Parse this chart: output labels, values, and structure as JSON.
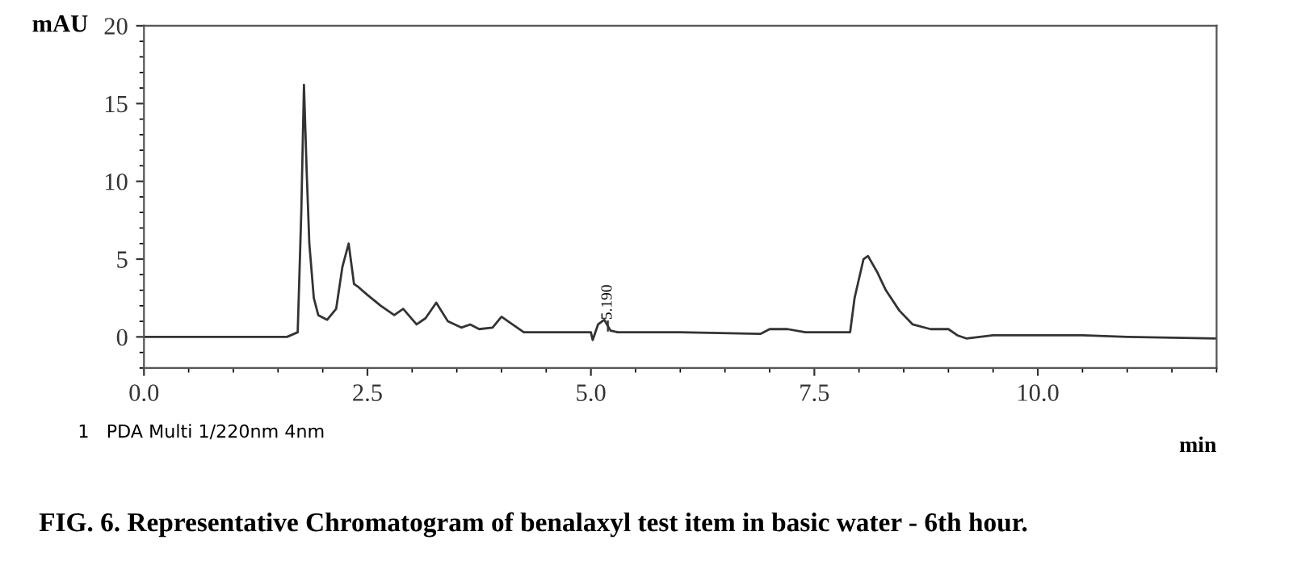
{
  "chart_data": {
    "type": "line",
    "title": "FIG. 6. Representative Chromatogram of benalaxyl test item in basic water - 6th hour.",
    "xlabel": "min",
    "ylabel": "mAU",
    "annotations": [
      {
        "text": "5.190",
        "x": 5.19,
        "y": 0.4
      },
      "1   PDA Multi 1/220nm 4nm"
    ],
    "x": [
      0,
      1.0,
      1.6,
      1.72,
      1.76,
      1.79,
      1.82,
      1.85,
      1.9,
      1.95,
      2.05,
      2.15,
      2.22,
      2.29,
      2.35,
      2.4,
      2.5,
      2.65,
      2.8,
      2.9,
      3.05,
      3.15,
      3.27,
      3.4,
      3.55,
      3.65,
      3.75,
      3.9,
      4.0,
      4.1,
      4.25,
      4.5,
      5.0,
      5.02,
      5.08,
      5.15,
      5.22,
      5.3,
      6.0,
      6.9,
      7.0,
      7.2,
      7.4,
      7.6,
      7.9,
      7.95,
      8.05,
      8.1,
      8.2,
      8.3,
      8.45,
      8.6,
      8.8,
      9.0,
      9.1,
      9.2,
      9.5,
      10.5,
      11.0,
      12.0
    ],
    "series": [
      {
        "color": "#333333",
        "values": [
          0,
          0,
          0,
          0.3,
          8,
          16.2,
          10.7,
          6,
          2.5,
          1.4,
          1.1,
          1.8,
          4.5,
          6.0,
          3.4,
          3.2,
          2.7,
          2.0,
          1.4,
          1.8,
          0.8,
          1.2,
          2.2,
          1.0,
          0.6,
          0.8,
          0.5,
          0.6,
          1.3,
          0.9,
          0.3,
          0.3,
          0.3,
          -0.2,
          0.8,
          1.1,
          0.4,
          0.3,
          0.3,
          0.2,
          0.5,
          0.5,
          0.3,
          0.3,
          0.3,
          2.5,
          5.0,
          5.2,
          4.2,
          3.0,
          1.7,
          0.8,
          0.5,
          0.5,
          0.1,
          -0.1,
          0.1,
          0.1,
          0,
          -0.1
        ]
      }
    ],
    "xlim": [
      0,
      12
    ],
    "ylim": [
      -2,
      20
    ],
    "xticks": [
      {
        "value": 0,
        "label": "0.0"
      },
      {
        "value": 2.5,
        "label": "2.5"
      },
      {
        "value": 5,
        "label": "5.0"
      },
      {
        "value": 7.5,
        "label": "7.5"
      },
      {
        "value": 10,
        "label": "10.0"
      }
    ],
    "yticks": [
      0,
      5,
      10,
      15,
      20
    ],
    "grid": false,
    "legend": false,
    "line_style": "solid"
  }
}
